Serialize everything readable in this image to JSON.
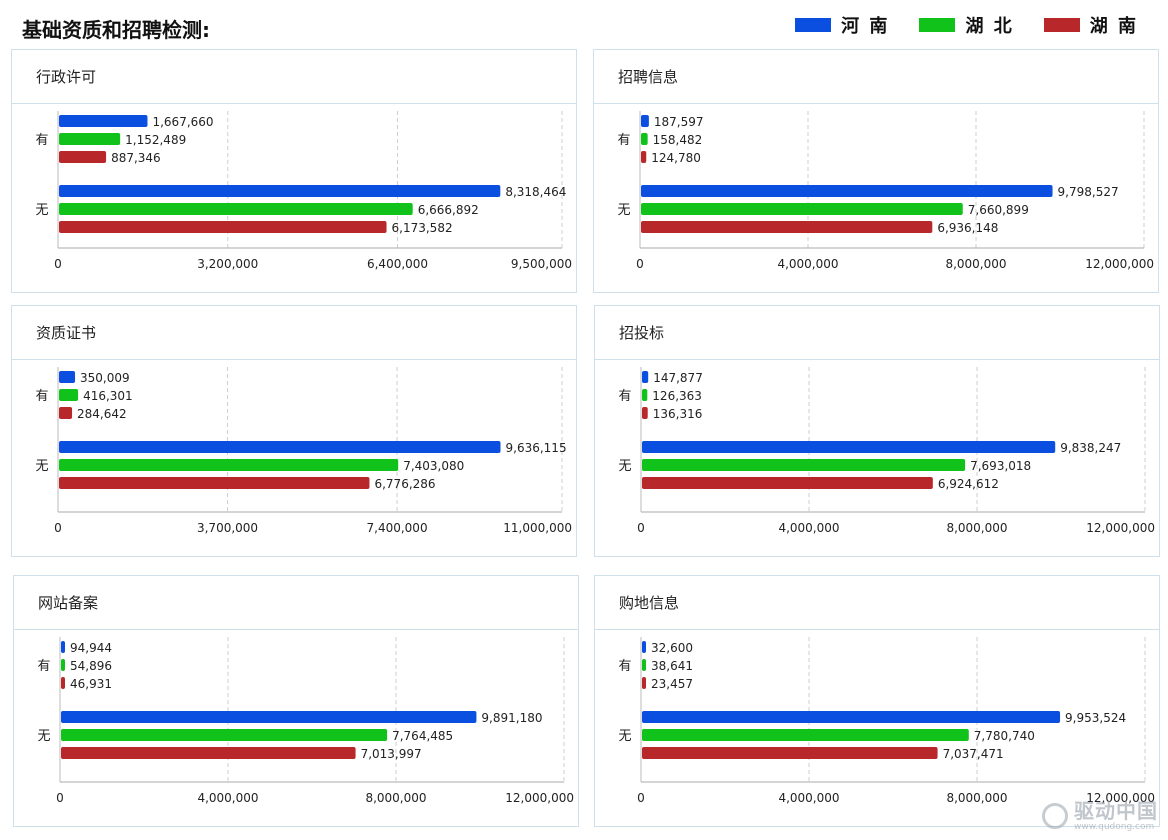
{
  "page": {
    "title": "基础资质和招聘检测:"
  },
  "legend": [
    {
      "label": "河 南",
      "color": "#0b4fe0"
    },
    {
      "label": "湖 北",
      "color": "#10c21a"
    },
    {
      "label": "湖 南",
      "color": "#b8282a"
    }
  ],
  "watermark": {
    "brand": "驱动中国",
    "url": "www.qudong.com"
  },
  "chart_data": [
    {
      "type": "bar",
      "orientation": "horizontal",
      "title": "行政许可",
      "categories": [
        "有",
        "无"
      ],
      "series": [
        {
          "name": "河南",
          "values": [
            1667660,
            8318464
          ]
        },
        {
          "name": "湖北",
          "values": [
            1152489,
            6666892
          ]
        },
        {
          "name": "湖南",
          "values": [
            887346,
            6173582
          ]
        }
      ],
      "value_labels": [
        [
          "1,667,660",
          "8,318,464"
        ],
        [
          "1,152,489",
          "6,666,892"
        ],
        [
          "887,346",
          "6,173,582"
        ]
      ],
      "xticks": [
        0,
        3200000,
        6400000,
        9500000
      ],
      "xtick_labels": [
        "0",
        "3,200,000",
        "6,400,000",
        "9,500,000"
      ],
      "xlim": [
        0,
        9500000
      ],
      "grid": true
    },
    {
      "type": "bar",
      "orientation": "horizontal",
      "title": "招聘信息",
      "categories": [
        "有",
        "无"
      ],
      "series": [
        {
          "name": "河南",
          "values": [
            187597,
            9798527
          ]
        },
        {
          "name": "湖北",
          "values": [
            158482,
            7660899
          ]
        },
        {
          "name": "湖南",
          "values": [
            124780,
            6936148
          ]
        }
      ],
      "value_labels": [
        [
          "187,597",
          "9,798,527"
        ],
        [
          "158,482",
          "7,660,899"
        ],
        [
          "124,780",
          "6,936,148"
        ]
      ],
      "xticks": [
        0,
        4000000,
        8000000,
        12000000
      ],
      "xtick_labels": [
        "0",
        "4,000,000",
        "8,000,000",
        "12,000,000"
      ],
      "xlim": [
        0,
        12000000
      ],
      "grid": true
    },
    {
      "type": "bar",
      "orientation": "horizontal",
      "title": "资质证书",
      "categories": [
        "有",
        "无"
      ],
      "series": [
        {
          "name": "河南",
          "values": [
            350009,
            9636115
          ]
        },
        {
          "name": "湖北",
          "values": [
            416301,
            7403080
          ]
        },
        {
          "name": "湖南",
          "values": [
            284642,
            6776286
          ]
        }
      ],
      "value_labels": [
        [
          "350,009",
          "9,636,115"
        ],
        [
          "416,301",
          "7,403,080"
        ],
        [
          "284,642",
          "6,776,286"
        ]
      ],
      "xticks": [
        0,
        3700000,
        7400000,
        11000000
      ],
      "xtick_labels": [
        "0",
        "3,700,000",
        "7,400,000",
        "11,000,000"
      ],
      "xlim": [
        0,
        11000000
      ],
      "grid": true
    },
    {
      "type": "bar",
      "orientation": "horizontal",
      "title": "招投标",
      "categories": [
        "有",
        "无"
      ],
      "series": [
        {
          "name": "河南",
          "values": [
            147877,
            9838247
          ]
        },
        {
          "name": "湖北",
          "values": [
            126363,
            7693018
          ]
        },
        {
          "name": "湖南",
          "values": [
            136316,
            6924612
          ]
        }
      ],
      "value_labels": [
        [
          "147,877",
          "9,838,247"
        ],
        [
          "126,363",
          "7,693,018"
        ],
        [
          "136,316",
          "6,924,612"
        ]
      ],
      "xticks": [
        0,
        4000000,
        8000000,
        12000000
      ],
      "xtick_labels": [
        "0",
        "4,000,000",
        "8,000,000",
        "12,000,000"
      ],
      "xlim": [
        0,
        12000000
      ],
      "grid": true
    },
    {
      "type": "bar",
      "orientation": "horizontal",
      "title": "网站备案",
      "categories": [
        "有",
        "无"
      ],
      "series": [
        {
          "name": "河南",
          "values": [
            94944,
            9891180
          ]
        },
        {
          "name": "湖北",
          "values": [
            54896,
            7764485
          ]
        },
        {
          "name": "湖南",
          "values": [
            46931,
            7013997
          ]
        }
      ],
      "value_labels": [
        [
          "94,944",
          "9,891,180"
        ],
        [
          "54,896",
          "7,764,485"
        ],
        [
          "46,931",
          "7,013,997"
        ]
      ],
      "xticks": [
        0,
        4000000,
        8000000,
        12000000
      ],
      "xtick_labels": [
        "0",
        "4,000,000",
        "8,000,000",
        "12,000,000"
      ],
      "xlim": [
        0,
        12000000
      ],
      "grid": true
    },
    {
      "type": "bar",
      "orientation": "horizontal",
      "title": "购地信息",
      "categories": [
        "有",
        "无"
      ],
      "series": [
        {
          "name": "河南",
          "values": [
            32600,
            9953524
          ]
        },
        {
          "name": "湖北",
          "values": [
            38641,
            7780740
          ]
        },
        {
          "name": "湖南",
          "values": [
            23457,
            7037471
          ]
        }
      ],
      "value_labels": [
        [
          "32,600",
          "9,953,524"
        ],
        [
          "38,641",
          "7,780,740"
        ],
        [
          "23,457",
          "7,037,471"
        ]
      ],
      "xticks": [
        0,
        4000000,
        8000000,
        12000000
      ],
      "xtick_labels": [
        "0",
        "4,000,000",
        "8,000,000",
        "12,000,000"
      ],
      "xlim": [
        0,
        12000000
      ],
      "grid": true
    }
  ]
}
